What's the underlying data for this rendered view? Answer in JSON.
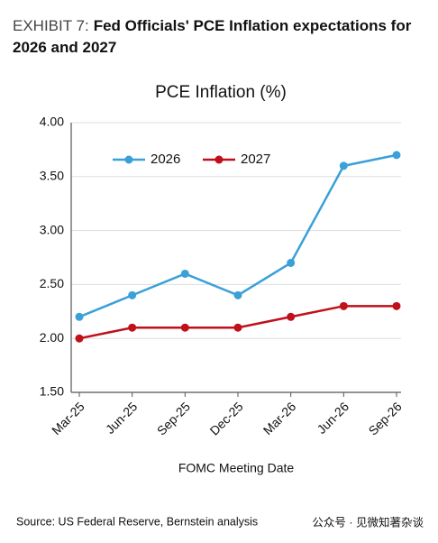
{
  "chart_data": {
    "type": "line",
    "exhibit": "EXHIBIT 7:",
    "title": "Fed Officials' PCE Inflation expectations for 2026 and 2027",
    "chart_title": "PCE Inflation (%)",
    "xlabel": "FOMC Meeting Date",
    "source": "Source: US Federal Reserve, Bernstein analysis",
    "watermark": "公众号 · 见微知著杂谈",
    "categories": [
      "Mar-25",
      "Jun-25",
      "Sep-25",
      "Dec-25",
      "Mar-26",
      "Jun-26",
      "Sep-26"
    ],
    "series": [
      {
        "name": "2026",
        "color": "#3aa0d8",
        "values": [
          2.2,
          2.4,
          2.6,
          2.4,
          2.7,
          3.6,
          3.7
        ]
      },
      {
        "name": "2027",
        "color": "#c0101a",
        "values": [
          2.0,
          2.1,
          2.1,
          2.1,
          2.2,
          2.3,
          2.3
        ]
      }
    ],
    "ylim": [
      1.5,
      4.0
    ],
    "yticks": [
      {
        "value": 1.5,
        "label": "1.50"
      },
      {
        "value": 2.0,
        "label": "2.00"
      },
      {
        "value": 2.5,
        "label": "2.50"
      },
      {
        "value": 3.0,
        "label": "3.00"
      },
      {
        "value": 3.5,
        "label": "3.50"
      },
      {
        "value": 4.0,
        "label": "4.00"
      }
    ],
    "grid": true
  }
}
